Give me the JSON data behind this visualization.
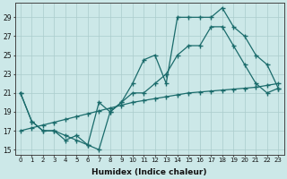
{
  "xlabel": "Humidex (Indice chaleur)",
  "bg_color": "#cce8e8",
  "grid_color": "#aacccc",
  "line_color": "#1a6b6b",
  "xlim": [
    -0.5,
    23.5
  ],
  "ylim": [
    14.5,
    30.5
  ],
  "xticks": [
    0,
    1,
    2,
    3,
    4,
    5,
    6,
    7,
    8,
    9,
    10,
    11,
    12,
    13,
    14,
    15,
    16,
    17,
    18,
    19,
    20,
    21,
    22,
    23
  ],
  "yticks": [
    15,
    17,
    19,
    21,
    23,
    25,
    27,
    29
  ],
  "line1_x": [
    0,
    1,
    2,
    3,
    4,
    5,
    6,
    7,
    8,
    9,
    10,
    11,
    12,
    13,
    14,
    15,
    16,
    17,
    18,
    19,
    20,
    21,
    22,
    23
  ],
  "line1_y": [
    21,
    18,
    17,
    17,
    16,
    16.5,
    15.5,
    15,
    19,
    20,
    22,
    24.5,
    25,
    22,
    29,
    29,
    29,
    29,
    30,
    28,
    27,
    25,
    24,
    21.5
  ],
  "line2_x": [
    0,
    1,
    2,
    3,
    4,
    5,
    6,
    7,
    8,
    9,
    10,
    11,
    12,
    13,
    14,
    15,
    16,
    17,
    18,
    19,
    20,
    21,
    22,
    23
  ],
  "line2_y": [
    21,
    18,
    17,
    17,
    16.5,
    16,
    15.5,
    20,
    19,
    20,
    21,
    21,
    22,
    23,
    25,
    26,
    26,
    28,
    28,
    26,
    24,
    22,
    21,
    21.5
  ],
  "line3_x": [
    0,
    1,
    2,
    3,
    4,
    5,
    6,
    7,
    8,
    9,
    10,
    11,
    12,
    13,
    14,
    15,
    16,
    17,
    18,
    19,
    20,
    21,
    22,
    23
  ],
  "line3_y": [
    17,
    17.3,
    17.6,
    17.9,
    18.2,
    18.5,
    18.8,
    19.1,
    19.4,
    19.7,
    20.0,
    20.2,
    20.4,
    20.6,
    20.8,
    21.0,
    21.1,
    21.2,
    21.3,
    21.4,
    21.5,
    21.6,
    21.8,
    22.0
  ]
}
